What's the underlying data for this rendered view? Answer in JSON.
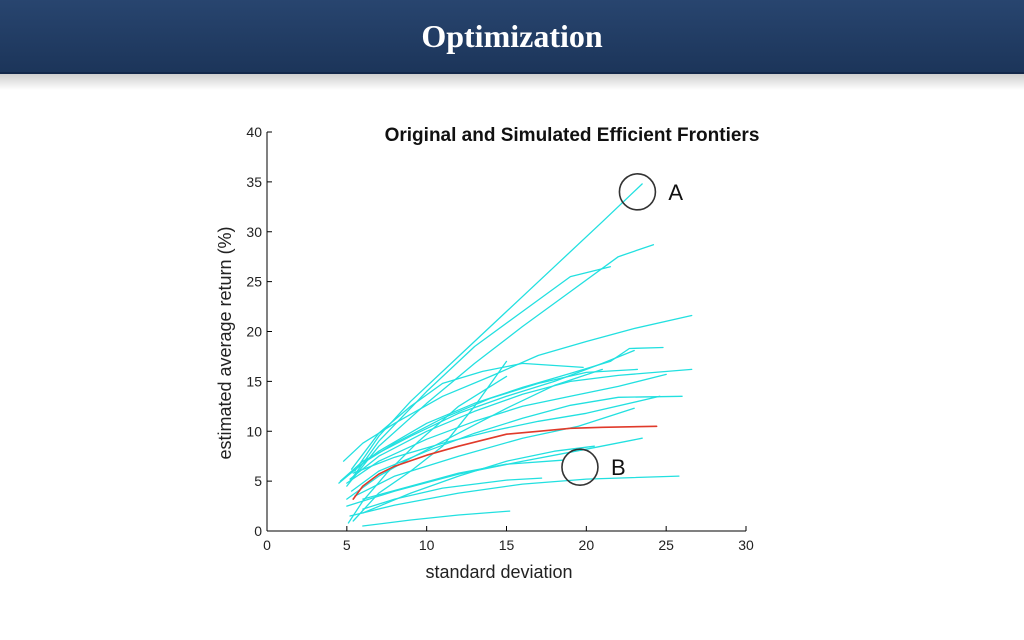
{
  "slide": {
    "title": "Optimization"
  },
  "chart_data": {
    "type": "line",
    "title": "Original and Simulated Efficient Frontiers",
    "xlabel": "standard deviation",
    "ylabel": "estimated average return (%)",
    "xlim": [
      0,
      30
    ],
    "ylim": [
      0,
      40
    ],
    "xticks": [
      0,
      5,
      10,
      15,
      20,
      25,
      30
    ],
    "yticks": [
      0,
      5,
      10,
      15,
      20,
      25,
      30,
      35,
      40
    ],
    "grid": false,
    "colors": {
      "simulated": "#22e0e0",
      "original": "#e03a2a",
      "axis": "#000000",
      "annotation": "#333333"
    },
    "series": [
      {
        "role": "original",
        "points": [
          [
            5.4,
            3.2
          ],
          [
            6,
            4.5
          ],
          [
            7,
            5.7
          ],
          [
            8,
            6.5
          ],
          [
            10,
            7.6
          ],
          [
            12,
            8.5
          ],
          [
            14,
            9.3
          ],
          [
            15,
            9.7
          ],
          [
            17,
            10.0
          ],
          [
            19,
            10.3
          ],
          [
            21,
            10.4
          ],
          [
            24.4,
            10.5
          ]
        ]
      },
      {
        "role": "simulated",
        "points": [
          [
            5.5,
            6
          ],
          [
            7,
            9.5
          ],
          [
            9,
            13
          ],
          [
            12,
            17.5
          ],
          [
            15,
            22
          ],
          [
            18,
            26.5
          ],
          [
            21,
            31
          ],
          [
            23.5,
            34.8
          ]
        ]
      },
      {
        "role": "simulated",
        "points": [
          [
            5.2,
            5
          ],
          [
            7,
            9
          ],
          [
            10,
            14
          ],
          [
            13,
            18.5
          ],
          [
            16,
            22
          ],
          [
            19,
            25.5
          ],
          [
            21.5,
            26.5
          ]
        ]
      },
      {
        "role": "simulated",
        "points": [
          [
            5,
            4.5
          ],
          [
            7,
            8.5
          ],
          [
            10,
            12.8
          ],
          [
            13,
            16.8
          ],
          [
            16,
            20.5
          ],
          [
            19,
            24
          ],
          [
            22,
            27.5
          ],
          [
            24.2,
            28.7
          ]
        ]
      },
      {
        "role": "simulated",
        "points": [
          [
            4.8,
            7
          ],
          [
            6,
            8.8
          ],
          [
            8,
            10.8
          ],
          [
            11,
            13.5
          ],
          [
            14,
            15.5
          ],
          [
            17,
            17.6
          ],
          [
            20,
            19
          ],
          [
            23,
            20.3
          ],
          [
            26.6,
            21.6
          ]
        ]
      },
      {
        "role": "simulated",
        "points": [
          [
            5,
            5.5
          ],
          [
            7,
            8
          ],
          [
            10,
            10.8
          ],
          [
            13,
            12.8
          ],
          [
            16,
            14.4
          ],
          [
            19,
            15.8
          ],
          [
            21.5,
            17
          ],
          [
            22.7,
            18.3
          ],
          [
            24.8,
            18.4
          ]
        ]
      },
      {
        "role": "simulated",
        "points": [
          [
            4.6,
            5
          ],
          [
            6,
            7
          ],
          [
            9,
            9.5
          ],
          [
            12,
            11.8
          ],
          [
            15,
            13.5
          ],
          [
            18,
            15
          ],
          [
            21,
            16.8
          ],
          [
            23,
            18.1
          ]
        ]
      },
      {
        "role": "simulated",
        "points": [
          [
            5.2,
            5.2
          ],
          [
            7,
            7.5
          ],
          [
            10,
            10
          ],
          [
            13,
            12
          ],
          [
            16,
            13.7
          ],
          [
            19,
            15
          ],
          [
            22,
            15.6
          ],
          [
            26.6,
            16.2
          ]
        ]
      },
      {
        "role": "simulated",
        "points": [
          [
            5,
            4.8
          ],
          [
            7,
            7
          ],
          [
            10,
            9.2
          ],
          [
            13,
            11
          ],
          [
            16,
            12.5
          ],
          [
            19,
            13.5
          ],
          [
            22,
            14.5
          ],
          [
            25,
            15.7
          ]
        ]
      },
      {
        "role": "simulated",
        "points": [
          [
            5.3,
            4
          ],
          [
            7,
            6
          ],
          [
            10,
            8
          ],
          [
            13,
            9.8
          ],
          [
            16,
            11.3
          ],
          [
            19,
            12.6
          ],
          [
            22,
            13.4
          ],
          [
            26,
            13.5
          ]
        ]
      },
      {
        "role": "simulated",
        "points": [
          [
            5.5,
            3.5
          ],
          [
            8,
            5.5
          ],
          [
            12,
            7.5
          ],
          [
            16,
            9.3
          ],
          [
            19.5,
            10.5
          ],
          [
            23,
            12.3
          ]
        ]
      },
      {
        "role": "simulated",
        "points": [
          [
            5.4,
            5.8
          ],
          [
            8,
            7.4
          ],
          [
            11,
            8.8
          ],
          [
            14,
            10
          ],
          [
            17,
            11
          ],
          [
            20,
            11.8
          ],
          [
            24.6,
            13.5
          ]
        ]
      },
      {
        "role": "simulated",
        "points": [
          [
            5,
            2.5
          ],
          [
            8,
            4
          ],
          [
            12,
            5.7
          ],
          [
            16,
            7
          ],
          [
            20,
            8.2
          ],
          [
            23.5,
            9.3
          ]
        ]
      },
      {
        "role": "simulated",
        "points": [
          [
            5.2,
            1.5
          ],
          [
            8,
            2.6
          ],
          [
            12,
            3.8
          ],
          [
            16,
            4.7
          ],
          [
            20,
            5.2
          ],
          [
            25.8,
            5.5
          ]
        ]
      },
      {
        "role": "simulated",
        "points": [
          [
            5.4,
            1
          ],
          [
            7,
            3.8
          ],
          [
            9,
            6
          ],
          [
            11,
            8.5
          ],
          [
            13,
            12.5
          ],
          [
            15,
            17
          ]
        ]
      },
      {
        "role": "simulated",
        "points": [
          [
            5.1,
            0.8
          ],
          [
            6,
            3
          ],
          [
            7.5,
            5.8
          ],
          [
            9.5,
            9
          ],
          [
            12,
            12.5
          ],
          [
            15,
            15.5
          ]
        ]
      },
      {
        "role": "simulated",
        "points": [
          [
            5,
            3.2
          ],
          [
            7,
            5.5
          ],
          [
            9,
            7.3
          ],
          [
            12,
            9.8
          ],
          [
            15,
            12.3
          ],
          [
            18,
            14.6
          ],
          [
            21,
            16.2
          ]
        ]
      },
      {
        "role": "simulated",
        "points": [
          [
            6,
            1.8
          ],
          [
            9,
            3.8
          ],
          [
            12,
            5.5
          ],
          [
            15,
            7
          ],
          [
            18,
            8
          ],
          [
            20.5,
            8.5
          ]
        ]
      },
      {
        "role": "simulated",
        "points": [
          [
            6,
            0.5
          ],
          [
            9,
            1.1
          ],
          [
            12,
            1.6
          ],
          [
            15.2,
            2
          ]
        ]
      },
      {
        "role": "simulated",
        "points": [
          [
            6,
            3.2
          ],
          [
            9,
            4.5
          ],
          [
            12,
            5.8
          ],
          [
            15,
            6.7
          ],
          [
            18.5,
            7.1
          ]
        ]
      },
      {
        "role": "simulated",
        "points": [
          [
            4.5,
            4.8
          ],
          [
            6,
            6.8
          ],
          [
            8,
            8.8
          ],
          [
            11,
            11.3
          ],
          [
            14,
            13.3
          ],
          [
            17,
            14.8
          ],
          [
            20,
            15.9
          ],
          [
            23.2,
            16.2
          ]
        ]
      },
      {
        "role": "simulated",
        "points": [
          [
            5.3,
            6.2
          ],
          [
            7,
            9.8
          ],
          [
            9,
            12.5
          ],
          [
            11,
            14.8
          ],
          [
            13.5,
            16
          ],
          [
            16,
            16.8
          ],
          [
            19.8,
            16.4
          ]
        ]
      },
      {
        "role": "simulated",
        "points": [
          [
            6,
            2.2
          ],
          [
            8,
            3.2
          ],
          [
            11,
            4.3
          ],
          [
            15,
            5.1
          ],
          [
            17.2,
            5.3
          ]
        ]
      }
    ],
    "annotations": [
      {
        "label": "A",
        "x": 23.2,
        "y": 34
      },
      {
        "label": "B",
        "x": 19.6,
        "y": 6.4
      }
    ]
  }
}
